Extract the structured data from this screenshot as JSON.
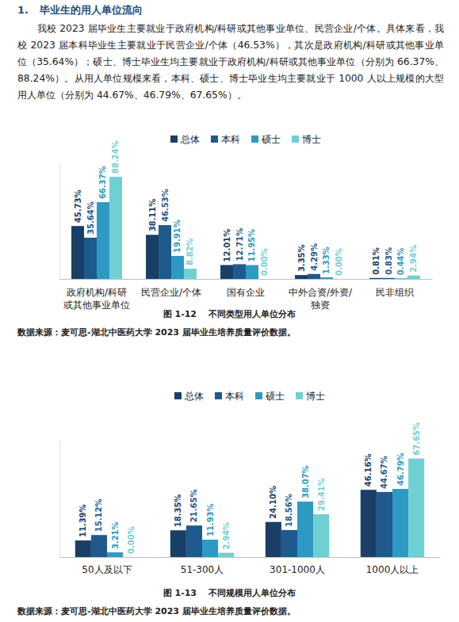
{
  "heading": "1.   毕业生的用人单位流向",
  "paragraph": "我校 2023 届毕业生主要就业于政府机构/科研或其他事业单位、民营企业/个体。具体来看，我校 2023 届本科毕业生主要就业于民营企业/个体（46.53%），其次是政府机构/科研或其他事业单位（35.64%）；硕士、博士毕业生均主要就业于政府机构/科研或其他事业单位（分别为 66.37%、88.24%）。从用人单位规模来看，本科、硕士、博士毕业生均主要就业于 1000 人以上规模的大型用人单位（分别为 44.67%、46.79%、67.65%）。",
  "chart_data": [
    {
      "type": "bar",
      "title": "图 1-12    不同类型用人单位分布",
      "annotations": [
        "数据来源：麦可思-湖北中医药大学 2023 届毕业生培养质量评价数据。"
      ],
      "categories": [
        "政府机构/科研\n或其他事业单位",
        "民营企业/个体",
        "国有企业",
        "中外合资/外资/\n独资",
        "民非组织"
      ],
      "series": [
        {
          "name": "总体",
          "color": "#1a3f66",
          "values": [
            45.73,
            38.11,
            12.01,
            3.35,
            0.81
          ],
          "value_labels": [
            "45.73%",
            "38.11%",
            "12.01%",
            "3.35%",
            "0.81%"
          ]
        },
        {
          "name": "本科",
          "color": "#1f5a8c",
          "values": [
            35.64,
            46.53,
            12.71,
            4.29,
            0.83
          ],
          "value_labels": [
            "35.64%",
            "46.53%",
            "12.71%",
            "4.29%",
            "0.83%"
          ]
        },
        {
          "name": "硕士",
          "color": "#2e9ac4",
          "values": [
            66.37,
            19.91,
            11.95,
            1.33,
            0.44
          ],
          "value_labels": [
            "66.37%",
            "19.91%",
            "11.95%",
            "1.33%",
            "0.44%"
          ]
        },
        {
          "name": "博士",
          "color": "#6fd0d4",
          "values": [
            88.24,
            8.82,
            0.0,
            0.0,
            2.94
          ],
          "value_labels": [
            "88.24%",
            "8.82%",
            "0.00%",
            "0.00%",
            "2.94%"
          ]
        }
      ],
      "ylim": [
        0,
        100
      ],
      "data_labels": true,
      "tick_labels": "x",
      "legend": "top"
    },
    {
      "type": "bar",
      "title": "图 1-13    不同规模用人单位分布",
      "annotations": [
        "数据来源：麦可思-湖北中医药大学 2023 届毕业生培养质量评价数据。"
      ],
      "categories": [
        "50人及以下",
        "51-300人",
        "301-1000人",
        "1000人以上"
      ],
      "series": [
        {
          "name": "总体",
          "color": "#1a3f66",
          "values": [
            11.39,
            18.35,
            24.1,
            46.16
          ],
          "value_labels": [
            "11.39%",
            "18.35%",
            "24.10%",
            "46.16%"
          ]
        },
        {
          "name": "本科",
          "color": "#1f5a8c",
          "values": [
            15.12,
            21.65,
            18.56,
            44.67
          ],
          "value_labels": [
            "15.12%",
            "21.65%",
            "18.56%",
            "44.67%"
          ]
        },
        {
          "name": "硕士",
          "color": "#2e9ac4",
          "values": [
            3.21,
            11.93,
            38.07,
            46.79
          ],
          "value_labels": [
            "3.21%",
            "11.93%",
            "38.07%",
            "46.79%"
          ]
        },
        {
          "name": "博士",
          "color": "#6fd0d4",
          "values": [
            0.0,
            2.94,
            29.41,
            67.65
          ],
          "value_labels": [
            "0.00%",
            "2.94%",
            "29.41%",
            "67.65%"
          ]
        }
      ],
      "ylim": [
        0,
        80
      ],
      "data_labels": true,
      "tick_labels": "x",
      "legend": "top"
    }
  ]
}
